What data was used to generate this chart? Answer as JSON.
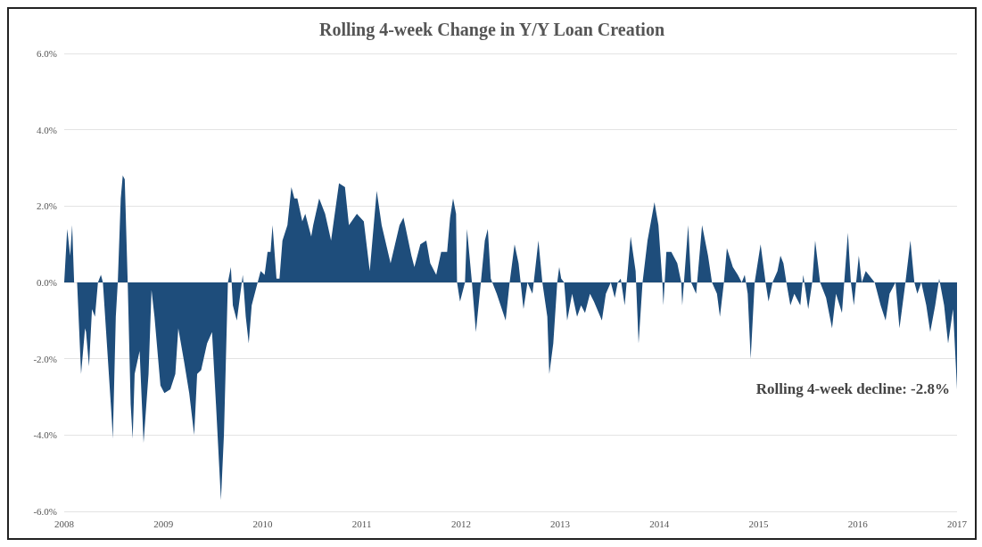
{
  "chart_data": {
    "type": "area",
    "title": "Rolling 4-week Change in Y/Y Loan Creation",
    "series": [
      {
        "color": "#1e4d7b",
        "x": [
          2008.0,
          2008.03,
          2008.06,
          2008.08,
          2008.1,
          2008.13,
          2008.17,
          2008.21,
          2008.22,
          2008.25,
          2008.28,
          2008.31,
          2008.34,
          2008.37,
          2008.39,
          2008.43,
          2008.48,
          2008.49,
          2008.52,
          2008.54,
          2008.57,
          2008.59,
          2008.61,
          2008.64,
          2008.67,
          2008.69,
          2008.71,
          2008.76,
          2008.8,
          2008.85,
          2008.88,
          2008.91,
          2008.97,
          2009.01,
          2009.07,
          2009.12,
          2009.15,
          2009.21,
          2009.26,
          2009.31,
          2009.34,
          2009.38,
          2009.44,
          2009.49,
          2009.53,
          2009.58,
          2009.61,
          2009.65,
          2009.68,
          2009.7,
          2009.74,
          2009.77,
          2009.8,
          2009.83,
          2009.86,
          2009.89,
          2009.95,
          2009.98,
          2010.02,
          2010.05,
          2010.08,
          2010.1,
          2010.14,
          2010.17,
          2010.2,
          2010.25,
          2010.29,
          2010.32,
          2010.35,
          2010.4,
          2010.43,
          2010.49,
          2010.51,
          2010.57,
          2010.63,
          2010.69,
          2010.77,
          2010.83,
          2010.87,
          2010.95,
          2011.02,
          2011.08,
          2011.11,
          2011.15,
          2011.2,
          2011.29,
          2011.38,
          2011.42,
          2011.5,
          2011.53,
          2011.59,
          2011.65,
          2011.69,
          2011.75,
          2011.8,
          2011.86,
          2011.89,
          2011.92,
          2011.95,
          2011.96,
          2011.99,
          2012.04,
          2012.06,
          2012.11,
          2012.15,
          2012.2,
          2012.24,
          2012.27,
          2012.3,
          2012.36,
          2012.45,
          2012.49,
          2012.54,
          2012.58,
          2012.63,
          2012.67,
          2012.72,
          2012.78,
          2012.82,
          2012.87,
          2012.89,
          2012.93,
          2012.97,
          2012.99,
          2013.01,
          2013.04,
          2013.07,
          2013.12,
          2013.17,
          2013.21,
          2013.25,
          2013.3,
          2013.34,
          2013.42,
          2013.46,
          2013.51,
          2013.55,
          2013.58,
          2013.61,
          2013.65,
          2013.71,
          2013.76,
          2013.79,
          2013.83,
          2013.88,
          2013.95,
          2013.99,
          2014.03,
          2014.04,
          2014.07,
          2014.12,
          2014.18,
          2014.22,
          2014.23,
          2014.29,
          2014.32,
          2014.37,
          2014.43,
          2014.49,
          2014.53,
          2014.58,
          2014.61,
          2014.65,
          2014.68,
          2014.74,
          2014.79,
          2014.83,
          2014.86,
          2014.89,
          2014.92,
          2014.96,
          2015.02,
          2015.07,
          2015.1,
          2015.14,
          2015.19,
          2015.22,
          2015.25,
          2015.28,
          2015.32,
          2015.36,
          2015.42,
          2015.45,
          2015.5,
          2015.54,
          2015.57,
          2015.62,
          2015.68,
          2015.74,
          2015.78,
          2015.84,
          2015.9,
          2015.93,
          2015.96,
          2016.01,
          2016.04,
          2016.08,
          2016.14,
          2016.17,
          2016.23,
          2016.28,
          2016.32,
          2016.38,
          2016.42,
          2016.48,
          2016.53,
          2016.57,
          2016.6,
          2016.64,
          2016.69,
          2016.73,
          2016.78,
          2016.82,
          2016.87,
          2016.91,
          2016.96,
          2017.0
        ],
        "values": [
          0,
          1.4,
          0.7,
          1.5,
          0,
          0,
          -2.4,
          -1.2,
          -1.3,
          -2.2,
          -0.7,
          -0.9,
          0,
          0.2,
          0,
          -1.6,
          -3.6,
          -4.1,
          -0.9,
          0,
          2.2,
          2.8,
          2.7,
          0,
          -3.2,
          -4.1,
          -2.4,
          -1.8,
          -4.2,
          -2.4,
          -0.2,
          -0.9,
          -2.7,
          -2.9,
          -2.8,
          -2.4,
          -1.2,
          -2.1,
          -2.9,
          -4.0,
          -2.4,
          -2.3,
          -1.6,
          -1.3,
          -3.2,
          -5.7,
          -4.0,
          0,
          0.4,
          -0.6,
          -1.0,
          -0.4,
          0.2,
          -0.9,
          -1.6,
          -0.6,
          0,
          0.3,
          0.2,
          0.8,
          0.8,
          1.5,
          0.1,
          0.1,
          1.1,
          1.5,
          2.5,
          2.2,
          2.2,
          1.6,
          1.8,
          1.2,
          1.5,
          2.2,
          1.8,
          1.1,
          2.6,
          2.5,
          1.5,
          1.8,
          1.6,
          0.3,
          1.2,
          2.4,
          1.5,
          0.5,
          1.5,
          1.7,
          0.7,
          0.4,
          1.0,
          1.1,
          0.5,
          0.2,
          0.8,
          0.8,
          1.7,
          2.2,
          1.8,
          0,
          -0.5,
          0,
          1.4,
          0,
          -1.3,
          0,
          1.1,
          1.4,
          0.1,
          -0.3,
          -1.0,
          0,
          1.0,
          0.5,
          -0.7,
          0,
          -0.3,
          1.1,
          0,
          -0.9,
          -2.4,
          -1.6,
          0,
          0.4,
          0.1,
          0,
          -1.0,
          -0.3,
          -0.9,
          -0.6,
          -0.8,
          -0.3,
          -0.5,
          -1.0,
          -0.3,
          0,
          -0.4,
          0,
          0.1,
          -0.6,
          1.2,
          0.3,
          -1.6,
          0,
          1.1,
          2.1,
          1.5,
          0,
          -0.6,
          0.8,
          0.8,
          0.5,
          0,
          -0.6,
          1.5,
          0,
          -0.3,
          1.5,
          0.7,
          0,
          -0.3,
          -0.9,
          0,
          0.9,
          0.4,
          0.2,
          0,
          0.2,
          -0.3,
          -2.0,
          0,
          1.0,
          0,
          -0.5,
          0,
          0.3,
          0.7,
          0.5,
          0,
          -0.6,
          -0.3,
          -0.6,
          0.2,
          -0.7,
          0,
          1.1,
          0,
          -0.4,
          -1.2,
          -0.3,
          -0.8,
          1.3,
          0,
          -0.6,
          0.7,
          0,
          0.3,
          0.1,
          0,
          -0.6,
          -1.0,
          -0.3,
          0,
          -1.2,
          0,
          1.1,
          0,
          -0.3,
          0,
          -0.6,
          -1.3,
          -0.6,
          0.1,
          -0.6,
          -1.6,
          -0.7,
          -2.8
        ]
      }
    ],
    "xlim": [
      2008,
      2017
    ],
    "xticks": [
      2008,
      2009,
      2010,
      2011,
      2012,
      2013,
      2014,
      2015,
      2016,
      2017
    ],
    "ylim": [
      -6,
      6
    ],
    "yticks": [
      {
        "value": -6,
        "label": "-6.0%"
      },
      {
        "value": -4,
        "label": "-4.0%"
      },
      {
        "value": -2,
        "label": "-2.0%"
      },
      {
        "value": 0,
        "label": "0.0%"
      },
      {
        "value": 2,
        "label": "2.0%"
      },
      {
        "value": 4,
        "label": "4.0%"
      },
      {
        "value": 6,
        "label": "6.0%"
      }
    ],
    "grid": "y",
    "annotations": [
      {
        "text": "Rolling 4-week decline: -2.8%",
        "x": 2017,
        "y": -2.8
      }
    ]
  }
}
